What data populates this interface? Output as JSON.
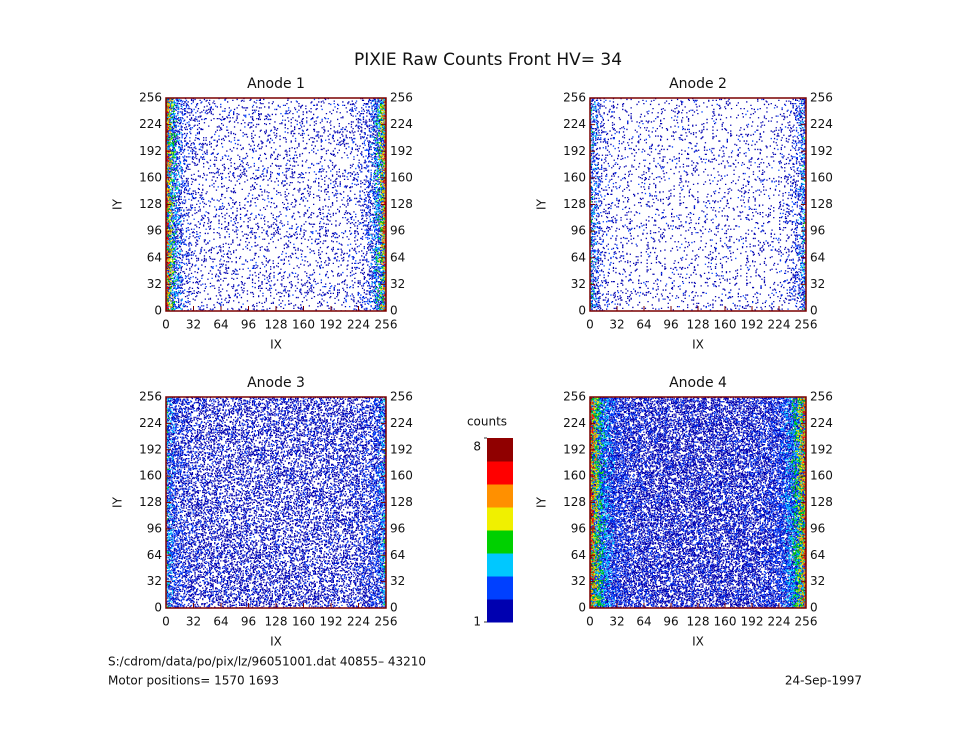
{
  "title": "PIXIE Raw Counts Front HV= 34",
  "file_info": "S:/cdrom/data/po/pix/lz/96051001.dat   40855– 43210",
  "motor_positions": "Motor positions= 1570 1693",
  "date": "24-Sep-1997",
  "colorbar": {
    "label": "counts",
    "clim": [
      1,
      8
    ],
    "ticks": [
      1,
      8
    ],
    "colormap": [
      "#0000b0",
      "#0040ff",
      "#00c8ff",
      "#00d000",
      "#f0f000",
      "#ff9000",
      "#ff0000",
      "#900000"
    ]
  },
  "chart_data": [
    {
      "type": "heatmap",
      "title": "Anode 1",
      "xlabel": "IX",
      "ylabel": "IY",
      "xlim": [
        0,
        256
      ],
      "ylim": [
        0,
        256
      ],
      "xticks": [
        0,
        32,
        64,
        96,
        128,
        160,
        192,
        224,
        256
      ],
      "yticks": [
        0,
        32,
        64,
        96,
        128,
        160,
        192,
        224,
        256
      ]
    },
    {
      "type": "heatmap",
      "title": "Anode 2",
      "xlabel": "IX",
      "ylabel": "IY",
      "xlim": [
        0,
        256
      ],
      "ylim": [
        0,
        256
      ],
      "xticks": [
        0,
        32,
        64,
        96,
        128,
        160,
        192,
        224,
        256
      ],
      "yticks": [
        0,
        32,
        64,
        96,
        128,
        160,
        192,
        224,
        256
      ]
    },
    {
      "type": "heatmap",
      "title": "Anode 3",
      "xlabel": "IX",
      "ylabel": "IY",
      "xlim": [
        0,
        256
      ],
      "ylim": [
        0,
        256
      ],
      "xticks": [
        0,
        32,
        64,
        96,
        128,
        160,
        192,
        224,
        256
      ],
      "yticks": [
        0,
        32,
        64,
        96,
        128,
        160,
        192,
        224,
        256
      ]
    },
    {
      "type": "heatmap",
      "title": "Anode 4",
      "xlabel": "IX",
      "ylabel": "IY",
      "xlim": [
        0,
        256
      ],
      "ylim": [
        0,
        256
      ],
      "xticks": [
        0,
        32,
        64,
        96,
        128,
        160,
        192,
        224,
        256
      ],
      "yticks": [
        0,
        32,
        64,
        96,
        128,
        160,
        192,
        224,
        256
      ]
    }
  ]
}
